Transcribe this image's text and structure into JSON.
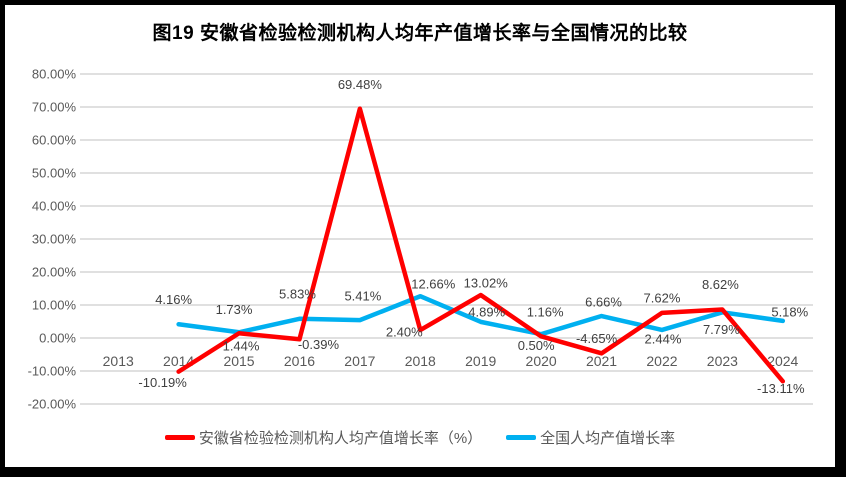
{
  "chart_data": {
    "type": "line",
    "title": "图19 安徽省检验检测机构人均年产值增长率与全国情况的比较",
    "categories": [
      "2013",
      "2014",
      "2015",
      "2016",
      "2017",
      "2018",
      "2019",
      "2020",
      "2021",
      "2022",
      "2023",
      "2024"
    ],
    "y_axis": {
      "min": -20,
      "max": 80,
      "step": 10,
      "tick_labels": [
        "80.00%",
        "70.00%",
        "60.00%",
        "50.00%",
        "40.00%",
        "30.00%",
        "20.00%",
        "10.00%",
        "0.00%",
        "-10.00%",
        "-20.00%"
      ]
    },
    "grid": true,
    "legend_position": "bottom",
    "series": [
      {
        "name": "安徽省检验检测机构人均产值增长率（%）",
        "color": "#FF0000",
        "values": [
          null,
          -10.19,
          1.44,
          -0.39,
          69.48,
          2.4,
          13.02,
          0.5,
          -4.65,
          7.62,
          8.62,
          -13.11
        ],
        "labels": [
          null,
          "-10.19%",
          "1.44%",
          "-0.39%",
          "69.48%",
          "2.40%",
          "13.02%",
          "0.50%",
          "-4.65%",
          "7.62%",
          "8.62%",
          "-13.11%"
        ],
        "label_offsets": [
          null,
          [
            -16,
            11
          ],
          [
            2,
            13
          ],
          [
            19,
            5
          ],
          [
            0,
            -24
          ],
          [
            -16,
            2
          ],
          [
            5,
            -12
          ],
          [
            -5,
            9
          ],
          [
            -5,
            -15
          ],
          [
            0,
            -15
          ],
          [
            -2,
            -25
          ],
          [
            -2,
            7
          ]
        ]
      },
      {
        "name": "全国人均产值增长率",
        "color": "#00B0F0",
        "values": [
          null,
          4.16,
          1.73,
          5.83,
          5.41,
          12.66,
          4.89,
          1.16,
          6.66,
          2.44,
          7.79,
          5.18
        ],
        "labels": [
          null,
          "4.16%",
          "1.73%",
          "5.83%",
          "5.41%",
          "12.66%",
          "4.89%",
          "1.16%",
          "6.66%",
          "2.44%",
          "7.79%",
          "5.18%"
        ],
        "label_offsets": [
          null,
          [
            -5,
            -25
          ],
          [
            -5,
            -23
          ],
          [
            -2,
            -25
          ],
          [
            3,
            -24
          ],
          [
            13,
            -12
          ],
          [
            6,
            -10
          ],
          [
            4,
            -22
          ],
          [
            2,
            -14
          ],
          [
            1,
            9
          ],
          [
            -1,
            17
          ],
          [
            7,
            -9
          ]
        ]
      }
    ],
    "colors": {
      "grid": "#E0E0E0",
      "axis_text": "#595959",
      "data_label": "#404040",
      "frame_border": "#000000"
    }
  }
}
